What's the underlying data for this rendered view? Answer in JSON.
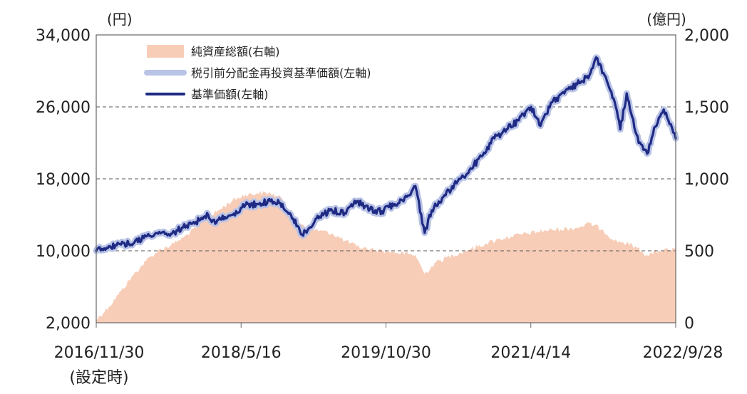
{
  "chart_data": {
    "type": "line",
    "title": "",
    "left_axis": {
      "unit": "(円)",
      "ylim": [
        2000,
        34000
      ],
      "ticks": [
        2000,
        10000,
        18000,
        26000,
        34000
      ],
      "tick_labels": [
        "2,000",
        "10,000",
        "18,000",
        "26,000",
        "34,000"
      ]
    },
    "right_axis": {
      "unit": "(億円)",
      "ylim": [
        0,
        2000
      ],
      "ticks": [
        0,
        500,
        1000,
        1500,
        2000
      ],
      "tick_labels": [
        "0",
        "500",
        "1,000",
        "1,500",
        "2,000"
      ]
    },
    "x_axis": {
      "start": "2016-11-30",
      "end": "2022-09-28",
      "ticks": [
        "2016-11-30",
        "2018-05-16",
        "2019-10-30",
        "2021-04-14",
        "2022-09-28"
      ],
      "tick_labels": [
        "2016/11/30",
        "2018/5/16",
        "2019/10/30",
        "2021/4/14",
        "2022/9/28"
      ],
      "start_note": "(設定時)"
    },
    "grid": "horizontal dashed",
    "legend_placement": "top-left",
    "series": [
      {
        "name": "純資産総額(右軸)",
        "kind": "area",
        "axis": "right",
        "color": "#f7cdb8",
        "points": [
          [
            "2016-11-30",
            20
          ],
          [
            "2017-01-15",
            110
          ],
          [
            "2017-03-01",
            220
          ],
          [
            "2017-04-15",
            330
          ],
          [
            "2017-06-01",
            430
          ],
          [
            "2017-07-15",
            500
          ],
          [
            "2017-09-01",
            540
          ],
          [
            "2017-10-15",
            590
          ],
          [
            "2017-12-01",
            660
          ],
          [
            "2018-01-15",
            730
          ],
          [
            "2018-03-01",
            790
          ],
          [
            "2018-04-15",
            850
          ],
          [
            "2018-06-01",
            890
          ],
          [
            "2018-07-15",
            900
          ],
          [
            "2018-09-01",
            900
          ],
          [
            "2018-10-15",
            860
          ],
          [
            "2018-12-01",
            720
          ],
          [
            "2019-01-15",
            660
          ],
          [
            "2019-03-01",
            640
          ],
          [
            "2019-04-15",
            620
          ],
          [
            "2019-06-01",
            570
          ],
          [
            "2019-07-15",
            530
          ],
          [
            "2019-09-01",
            510
          ],
          [
            "2019-10-15",
            500
          ],
          [
            "2019-12-01",
            490
          ],
          [
            "2020-02-15",
            470
          ],
          [
            "2020-03-20",
            340
          ],
          [
            "2020-05-01",
            420
          ],
          [
            "2020-07-01",
            470
          ],
          [
            "2020-09-01",
            510
          ],
          [
            "2020-11-01",
            550
          ],
          [
            "2020-12-15",
            580
          ],
          [
            "2021-02-01",
            600
          ],
          [
            "2021-04-01",
            620
          ],
          [
            "2021-06-01",
            640
          ],
          [
            "2021-08-01",
            650
          ],
          [
            "2021-10-01",
            660
          ],
          [
            "2021-11-15",
            690
          ],
          [
            "2022-01-01",
            650
          ],
          [
            "2022-02-15",
            570
          ],
          [
            "2022-03-15",
            560
          ],
          [
            "2022-05-01",
            530
          ],
          [
            "2022-06-15",
            470
          ],
          [
            "2022-08-01",
            500
          ],
          [
            "2022-09-28",
            510
          ]
        ]
      },
      {
        "name": "税引前分配金再投資基準価額(左軸)",
        "kind": "line",
        "axis": "left",
        "color": "#b9c3e6",
        "points": [
          [
            "2016-11-30",
            10000
          ],
          [
            "2017-01-15",
            10500
          ],
          [
            "2017-03-01",
            10700
          ],
          [
            "2017-04-15",
            10800
          ],
          [
            "2017-06-01",
            11600
          ],
          [
            "2017-07-15",
            11900
          ],
          [
            "2017-09-01",
            11900
          ],
          [
            "2017-10-15",
            12600
          ],
          [
            "2017-12-01",
            13200
          ],
          [
            "2018-01-15",
            14000
          ],
          [
            "2018-02-10",
            13000
          ],
          [
            "2018-03-01",
            13500
          ],
          [
            "2018-04-15",
            14000
          ],
          [
            "2018-06-01",
            15100
          ],
          [
            "2018-07-15",
            15200
          ],
          [
            "2018-09-01",
            15500
          ],
          [
            "2018-10-15",
            15200
          ],
          [
            "2018-11-15",
            14000
          ],
          [
            "2018-12-26",
            11800
          ],
          [
            "2019-01-20",
            12500
          ],
          [
            "2019-03-01",
            13800
          ],
          [
            "2019-04-15",
            14500
          ],
          [
            "2019-06-01",
            14200
          ],
          [
            "2019-07-15",
            15500
          ],
          [
            "2019-09-01",
            14600
          ],
          [
            "2019-10-15",
            14400
          ],
          [
            "2019-12-01",
            15200
          ],
          [
            "2020-01-15",
            16000
          ],
          [
            "2020-02-15",
            17200
          ],
          [
            "2020-03-20",
            12000
          ],
          [
            "2020-04-15",
            14500
          ],
          [
            "2020-06-01",
            16200
          ],
          [
            "2020-07-15",
            17500
          ],
          [
            "2020-09-01",
            19000
          ],
          [
            "2020-10-15",
            20500
          ],
          [
            "2020-12-01",
            22500
          ],
          [
            "2021-01-15",
            23500
          ],
          [
            "2021-03-01",
            24500
          ],
          [
            "2021-04-15",
            26000
          ],
          [
            "2021-05-15",
            24000
          ],
          [
            "2021-07-01",
            26500
          ],
          [
            "2021-08-15",
            27500
          ],
          [
            "2021-10-01",
            28500
          ],
          [
            "2021-11-15",
            29500
          ],
          [
            "2021-12-10",
            31500
          ],
          [
            "2022-01-10",
            29500
          ],
          [
            "2022-02-20",
            26000
          ],
          [
            "2022-03-08",
            23500
          ],
          [
            "2022-04-01",
            27500
          ],
          [
            "2022-05-15",
            22000
          ],
          [
            "2022-06-15",
            20800
          ],
          [
            "2022-07-15",
            23800
          ],
          [
            "2022-08-15",
            25700
          ],
          [
            "2022-09-01",
            24500
          ],
          [
            "2022-09-28",
            22500
          ]
        ]
      },
      {
        "name": "基準価額(左軸)",
        "kind": "line",
        "axis": "left",
        "color": "#1f2a84",
        "points": [
          [
            "2016-11-30",
            10000
          ],
          [
            "2017-01-15",
            10500
          ],
          [
            "2017-03-01",
            10700
          ],
          [
            "2017-04-15",
            10800
          ],
          [
            "2017-06-01",
            11600
          ],
          [
            "2017-07-15",
            11900
          ],
          [
            "2017-09-01",
            11900
          ],
          [
            "2017-10-15",
            12600
          ],
          [
            "2017-12-01",
            13200
          ],
          [
            "2018-01-15",
            14000
          ],
          [
            "2018-02-10",
            13000
          ],
          [
            "2018-03-01",
            13500
          ],
          [
            "2018-04-15",
            14000
          ],
          [
            "2018-06-01",
            15100
          ],
          [
            "2018-07-15",
            15200
          ],
          [
            "2018-09-01",
            15500
          ],
          [
            "2018-10-15",
            15200
          ],
          [
            "2018-11-15",
            14000
          ],
          [
            "2018-12-26",
            11800
          ],
          [
            "2019-01-20",
            12500
          ],
          [
            "2019-03-01",
            13800
          ],
          [
            "2019-04-15",
            14500
          ],
          [
            "2019-06-01",
            14200
          ],
          [
            "2019-07-15",
            15500
          ],
          [
            "2019-09-01",
            14600
          ],
          [
            "2019-10-15",
            14400
          ],
          [
            "2019-12-01",
            15200
          ],
          [
            "2020-01-15",
            16000
          ],
          [
            "2020-02-15",
            17200
          ],
          [
            "2020-03-20",
            12000
          ],
          [
            "2020-04-15",
            14500
          ],
          [
            "2020-06-01",
            16200
          ],
          [
            "2020-07-15",
            17500
          ],
          [
            "2020-09-01",
            19000
          ],
          [
            "2020-10-15",
            20500
          ],
          [
            "2020-12-01",
            22500
          ],
          [
            "2021-01-15",
            23500
          ],
          [
            "2021-03-01",
            24500
          ],
          [
            "2021-04-15",
            26000
          ],
          [
            "2021-05-15",
            24000
          ],
          [
            "2021-07-01",
            26500
          ],
          [
            "2021-08-15",
            27500
          ],
          [
            "2021-10-01",
            28500
          ],
          [
            "2021-11-15",
            29500
          ],
          [
            "2021-12-10",
            31500
          ],
          [
            "2022-01-10",
            29500
          ],
          [
            "2022-02-20",
            26000
          ],
          [
            "2022-03-08",
            23500
          ],
          [
            "2022-04-01",
            27500
          ],
          [
            "2022-05-15",
            22000
          ],
          [
            "2022-06-15",
            20800
          ],
          [
            "2022-07-15",
            23800
          ],
          [
            "2022-08-15",
            25700
          ],
          [
            "2022-09-01",
            24500
          ],
          [
            "2022-09-28",
            22500
          ]
        ]
      }
    ]
  }
}
